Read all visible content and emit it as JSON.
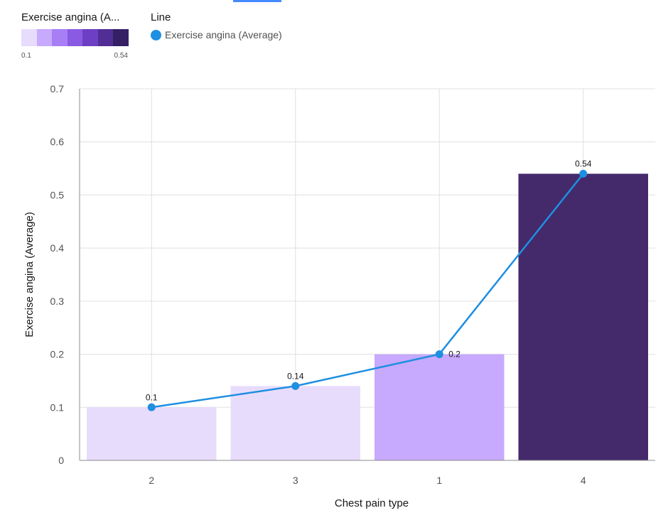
{
  "legend": {
    "color_title": "Exercise angina (A...",
    "color_min": "0.1",
    "color_max": "0.54",
    "swatch_colors": [
      "#e8dcfd",
      "#c7a9fd",
      "#a87ef4",
      "#8b5ae2",
      "#6d3fc2",
      "#512d96",
      "#352066"
    ],
    "line_title": "Line",
    "line_entry": "Exercise angina (Average)"
  },
  "colors": {
    "line": "#1e8fe1",
    "grid": "#e0e0e0",
    "axis": "#8d8d8d"
  },
  "chart_data": {
    "type": "bar",
    "categories": [
      "2",
      "3",
      "1",
      "4"
    ],
    "values": [
      0.1,
      0.14,
      0.2,
      0.54
    ],
    "data_labels": [
      "0.1",
      "0.14",
      "0.2",
      "0.54"
    ],
    "bar_colors": [
      "#e8dcfd",
      "#e8dcfd",
      "#c7a9fd",
      "#442a6b"
    ],
    "line_series": {
      "name": "Exercise angina (Average)",
      "values": [
        0.1,
        0.14,
        0.2,
        0.54
      ]
    },
    "xlabel": "Chest pain type",
    "ylabel": "Exercise angina (Average)",
    "ylim": [
      0,
      0.7
    ],
    "yticks": [
      0,
      0.1,
      0.2,
      0.3,
      0.4,
      0.5,
      0.6,
      0.7
    ],
    "ytick_labels": [
      "0",
      "0.1",
      "0.2",
      "0.3",
      "0.4",
      "0.5",
      "0.6",
      "0.7"
    ],
    "grid": true
  }
}
